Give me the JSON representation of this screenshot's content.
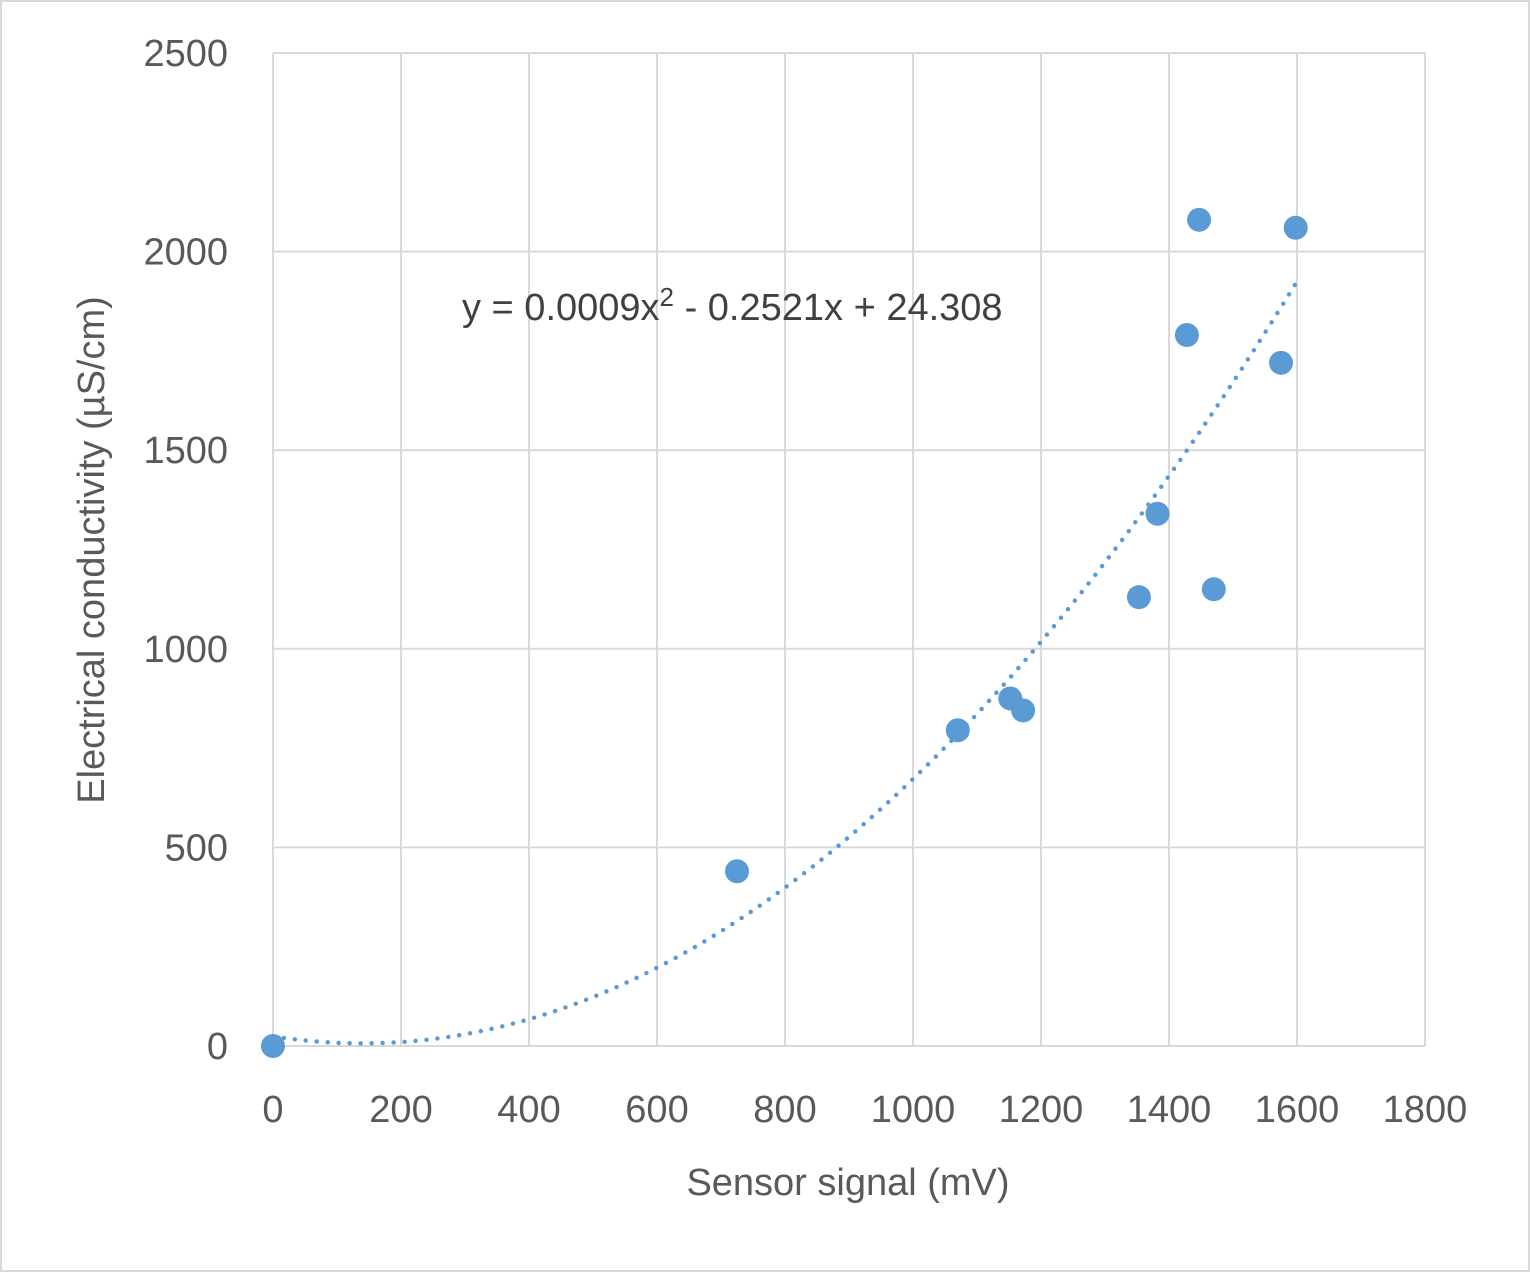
{
  "chart_data": {
    "type": "scatter",
    "title": "",
    "xlabel": "Sensor signal (mV)",
    "ylabel": "Electrical conductivity (µS/cm)",
    "xlim": [
      0,
      1800
    ],
    "ylim": [
      0,
      2500
    ],
    "x_ticks": [
      "0",
      "200",
      "400",
      "600",
      "800",
      "1000",
      "1200",
      "1400",
      "1600",
      "1800"
    ],
    "y_ticks": [
      "0",
      "500",
      "1000",
      "1500",
      "2000",
      "2500"
    ],
    "grid": true,
    "legend": "none",
    "marker_color": "#5b9bd5",
    "series": [
      {
        "points": [
          {
            "x": 0,
            "y": 0
          },
          {
            "x": 725,
            "y": 440
          },
          {
            "x": 1070,
            "y": 795
          },
          {
            "x": 1152,
            "y": 875
          },
          {
            "x": 1172,
            "y": 845
          },
          {
            "x": 1353,
            "y": 1130
          },
          {
            "x": 1382,
            "y": 1340
          },
          {
            "x": 1428,
            "y": 1790
          },
          {
            "x": 1447,
            "y": 2080
          },
          {
            "x": 1470,
            "y": 1150
          },
          {
            "x": 1575,
            "y": 1720
          },
          {
            "x": 1598,
            "y": 2060
          }
        ]
      }
    ],
    "trendline": {
      "type": "polynomial",
      "order": 2,
      "coefficients": {
        "a": 0.0009,
        "b": -0.2521,
        "c": 24.308
      },
      "x_range": [
        0,
        1600
      ],
      "style": "dotted",
      "equation_label": {
        "prefix": "y = 0.0009x",
        "superscript": "2",
        "suffix": " - 0.2521x + 24.308"
      }
    }
  }
}
